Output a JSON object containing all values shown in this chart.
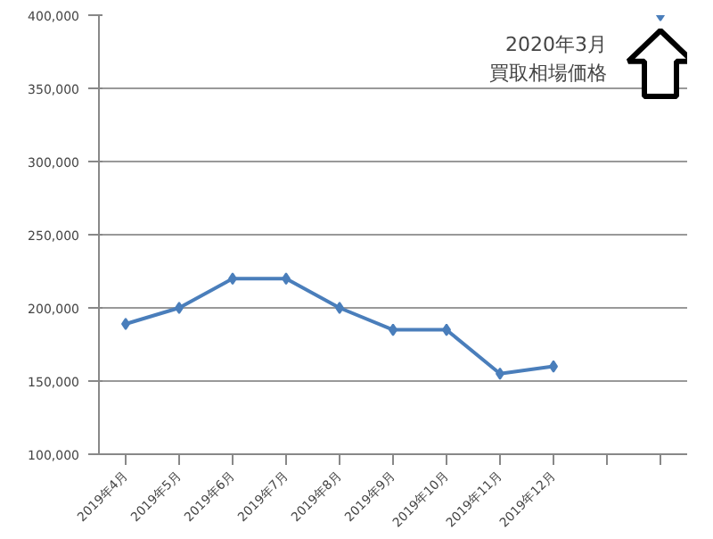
{
  "chart_data": {
    "type": "line",
    "categories": [
      "2019年4月",
      "2019年5月",
      "2019年6月",
      "2019年7月",
      "2019年8月",
      "2019年9月",
      "2019年10月",
      "2019年11月",
      "2019年12月",
      null,
      null
    ],
    "series": [
      {
        "color": "#4a7ebb",
        "values": [
          189000,
          200000,
          220000,
          220000,
          200000,
          185000,
          185000,
          155000,
          160000,
          null,
          400000
        ]
      }
    ],
    "ylim": [
      100000,
      400000
    ],
    "yticks": [
      {
        "value": 100000,
        "label": "100,000"
      },
      {
        "value": 150000,
        "label": "150,000"
      },
      {
        "value": 200000,
        "label": "200,000"
      },
      {
        "value": 250000,
        "label": "250,000"
      },
      {
        "value": 300000,
        "label": "300,000"
      },
      {
        "value": 350000,
        "label": "350,000"
      },
      {
        "value": 400000,
        "label": "400,000"
      }
    ],
    "grid": "y",
    "marker": "diamond",
    "line_style": "solid",
    "annotations": [
      "2020年3月",
      "買取相場価格"
    ]
  }
}
